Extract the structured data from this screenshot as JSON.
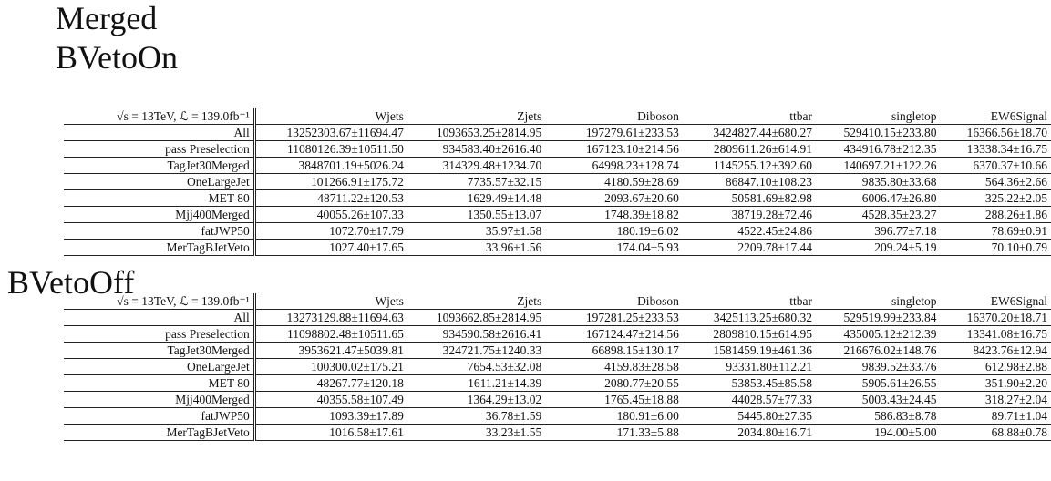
{
  "headings": {
    "line1": "Merged",
    "line2": "BVetoOn",
    "line3": "BVetoOff"
  },
  "table_corner_label": "√s = 13TeV, ℒ = 139.0fb⁻¹",
  "columns": [
    "Wjets",
    "Zjets",
    "Diboson",
    "ttbar",
    "singletop",
    "EW6Signal"
  ],
  "tables": [
    {
      "rows": [
        {
          "label": "All",
          "cells": [
            "13252303.67±11694.47",
            "1093653.25±2814.95",
            "197279.61±233.53",
            "3424827.44±680.27",
            "529410.15±233.80",
            "16366.56±18.70"
          ]
        },
        {
          "label": "pass Preselection",
          "cells": [
            "11080126.39±10511.50",
            "934583.40±2616.40",
            "167123.10±214.56",
            "2809611.26±614.91",
            "434916.78±212.35",
            "13338.34±16.75"
          ]
        },
        {
          "label": "TagJet30Merged",
          "cells": [
            "3848701.19±5026.24",
            "314329.48±1234.70",
            "64998.23±128.74",
            "1145255.12±392.60",
            "140697.21±122.26",
            "6370.37±10.66"
          ]
        },
        {
          "label": "OneLargeJet",
          "cells": [
            "101266.91±175.72",
            "7735.57±32.15",
            "4180.59±28.69",
            "86847.10±108.23",
            "9835.80±33.68",
            "564.36±2.66"
          ]
        },
        {
          "label": "MET 80",
          "cells": [
            "48711.22±120.53",
            "1629.49±14.48",
            "2093.67±20.60",
            "50581.69±82.98",
            "6006.47±26.80",
            "325.22±2.05"
          ]
        },
        {
          "label": "Mjj400Merged",
          "cells": [
            "40055.26±107.33",
            "1350.55±13.07",
            "1748.39±18.82",
            "38719.28±72.46",
            "4528.35±23.27",
            "288.26±1.86"
          ]
        },
        {
          "label": "fatJWP50",
          "cells": [
            "1072.70±17.79",
            "35.97±1.58",
            "180.19±6.02",
            "4522.45±24.86",
            "396.77±7.18",
            "78.69±0.91"
          ]
        },
        {
          "label": "MerTagBJetVeto",
          "cells": [
            "1027.40±17.65",
            "33.96±1.56",
            "174.04±5.93",
            "2209.78±17.44",
            "209.24±5.19",
            "70.10±0.79"
          ]
        }
      ]
    },
    {
      "rows": [
        {
          "label": "All",
          "cells": [
            "13273129.88±11694.63",
            "1093662.85±2814.95",
            "197281.25±233.53",
            "3425113.25±680.32",
            "529519.99±233.84",
            "16370.20±18.71"
          ]
        },
        {
          "label": "pass Preselection",
          "cells": [
            "11098802.48±10511.65",
            "934590.58±2616.41",
            "167124.47±214.56",
            "2809810.15±614.95",
            "435005.12±212.39",
            "13341.08±16.75"
          ]
        },
        {
          "label": "TagJet30Merged",
          "cells": [
            "3953621.47±5039.81",
            "324721.75±1240.33",
            "66898.15±130.17",
            "1581459.19±461.36",
            "216676.02±148.76",
            "8423.76±12.94"
          ]
        },
        {
          "label": "OneLargeJet",
          "cells": [
            "100300.02±175.21",
            "7654.53±32.08",
            "4159.83±28.58",
            "93331.80±112.21",
            "9839.52±33.76",
            "612.98±2.88"
          ]
        },
        {
          "label": "MET 80",
          "cells": [
            "48267.77±120.18",
            "1611.21±14.39",
            "2080.77±20.55",
            "53853.45±85.58",
            "5905.61±26.55",
            "351.90±2.20"
          ]
        },
        {
          "label": "Mjj400Merged",
          "cells": [
            "40355.58±107.49",
            "1364.29±13.02",
            "1765.45±18.88",
            "44028.57±77.33",
            "5003.43±24.45",
            "318.27±2.04"
          ]
        },
        {
          "label": "fatJWP50",
          "cells": [
            "1093.39±17.89",
            "36.78±1.59",
            "180.91±6.00",
            "5445.80±27.35",
            "586.83±8.78",
            "89.71±1.04"
          ]
        },
        {
          "label": "MerTagBJetVeto",
          "cells": [
            "1016.58±17.61",
            "33.23±1.55",
            "171.33±5.88",
            "2034.80±16.71",
            "194.00±5.00",
            "68.88±0.78"
          ]
        }
      ]
    }
  ]
}
